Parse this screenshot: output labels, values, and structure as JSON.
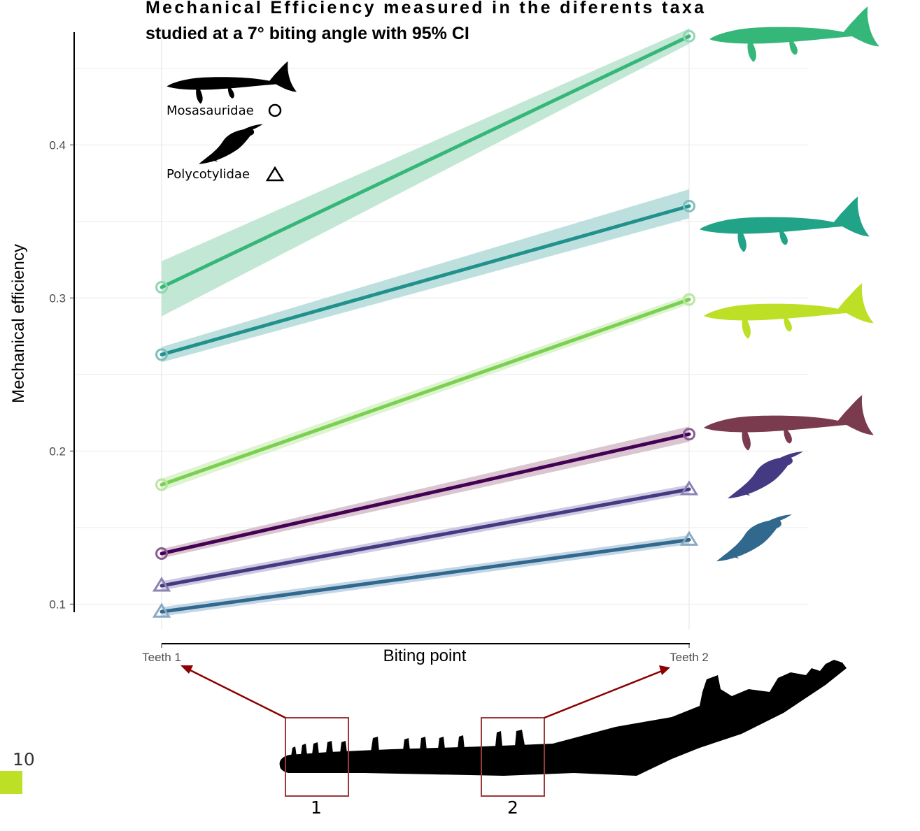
{
  "chart_data": {
    "type": "line",
    "title_line1": "Mechanical  Efficiency  measured  in  the  diferents  taxa",
    "title_line2": "studied at a 7° biting angle with 95% CI",
    "xlabel": "Biting point",
    "ylabel": "Mechanical efficiency",
    "x_categories": [
      "Teeth  1",
      "Teeth  2"
    ],
    "y_ticks": [
      "0.1",
      "0.2",
      "0.3",
      "0.4"
    ],
    "y_tick_values": [
      0.1,
      0.2,
      0.3,
      0.4
    ],
    "ylim": [
      0.088,
      0.48
    ],
    "grid": true,
    "legend": {
      "placement": "top-left",
      "entries": [
        {
          "label": "Mosasauridae",
          "marker": "circle"
        },
        {
          "label": "Polycotylidae",
          "marker": "triangle"
        }
      ]
    },
    "series": [
      {
        "values": [
          0.307,
          0.471
        ],
        "ci_low": [
          0.288,
          0.466
        ],
        "ci_high": [
          0.324,
          0.476
        ],
        "color": "#35b779",
        "band": "#b7e3cc",
        "marker": "circle",
        "family": "Mosasauridae",
        "marker_color": "#8fd6b1"
      },
      {
        "values": [
          0.263,
          0.36
        ],
        "ci_low": [
          0.258,
          0.352
        ],
        "ci_high": [
          0.268,
          0.371
        ],
        "color": "#21918c",
        "band": "#b1dbd9",
        "marker": "circle",
        "family": "Mosasauridae",
        "marker_color": "#7cc0bc"
      },
      {
        "values": [
          0.178,
          0.299
        ],
        "ci_low": [
          0.174,
          0.296
        ],
        "ci_high": [
          0.182,
          0.302
        ],
        "color": "#7ad151",
        "band": "#d8f1c7",
        "marker": "circle",
        "family": "Mosasauridae",
        "marker_color": "#b9e79d"
      },
      {
        "values": [
          0.133,
          0.211
        ],
        "ci_low": [
          0.13,
          0.206
        ],
        "ci_high": [
          0.136,
          0.216
        ],
        "color": "#440154",
        "band": "#d2bcc8",
        "marker": "circle",
        "family": "Mosasauridae",
        "marker_color": "#8a5c94"
      },
      {
        "values": [
          0.112,
          0.175
        ],
        "ci_low": [
          0.109,
          0.172
        ],
        "ci_high": [
          0.115,
          0.178
        ],
        "color": "#443a83",
        "band": "#c6c1dc",
        "marker": "triangle",
        "family": "Polycotylidae",
        "marker_color": "#8a84b5"
      },
      {
        "values": [
          0.095,
          0.142
        ],
        "ci_low": [
          0.092,
          0.139
        ],
        "ci_high": [
          0.098,
          0.145
        ],
        "color": "#31688e",
        "band": "#b9cfe0",
        "marker": "triangle",
        "family": "Polycotylidae",
        "marker_color": "#8aa9c2"
      }
    ],
    "silhouette_colors": [
      "#35b779",
      "#20a386",
      "#bddf26",
      "#7a3b4f",
      "#443a83",
      "#31688e"
    ]
  },
  "jaw": {
    "box_labels": [
      "1",
      "2"
    ],
    "arrow_color": "#8b0000",
    "box_color": "#9b3a3a"
  },
  "page": {
    "number": "10",
    "tab_color": "#bddf26"
  }
}
